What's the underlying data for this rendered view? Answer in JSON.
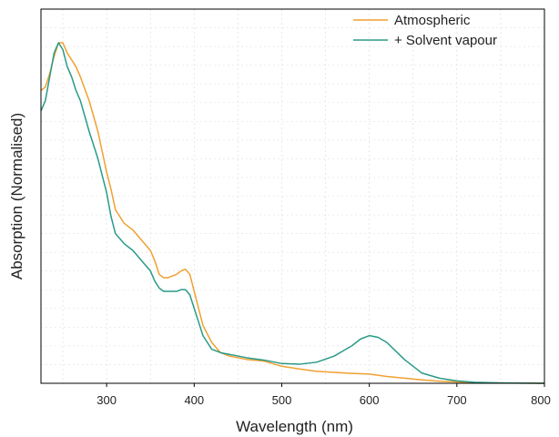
{
  "chart_data": {
    "type": "line",
    "title": "",
    "xlabel": "Wavelength (nm)",
    "ylabel": "Absorption (Normalised)",
    "xlim": [
      225,
      800
    ],
    "ylim": [
      0,
      1.0
    ],
    "x_ticks": [
      300,
      400,
      500,
      600,
      700,
      800
    ],
    "x_tick_labels": [
      "300",
      "400",
      "500",
      "600",
      "700",
      "800"
    ],
    "y_ticks_labeled": false,
    "grid": "minor dashed gridlines",
    "legend": "top-right",
    "series": [
      {
        "name": "Atmospheric",
        "color": "#F0A030",
        "x": [
          225,
          230,
          235,
          240,
          245,
          250,
          255,
          260,
          265,
          270,
          280,
          290,
          300,
          305,
          310,
          320,
          330,
          340,
          350,
          355,
          360,
          365,
          370,
          375,
          380,
          385,
          390,
          395,
          400,
          405,
          410,
          420,
          430,
          440,
          460,
          480,
          500,
          520,
          540,
          560,
          580,
          600,
          620,
          640,
          660,
          680,
          700,
          720,
          750,
          800
        ],
        "y": [
          0.86,
          0.87,
          0.91,
          0.96,
          1.0,
          1.0,
          0.97,
          0.95,
          0.93,
          0.9,
          0.83,
          0.74,
          0.62,
          0.57,
          0.51,
          0.47,
          0.45,
          0.42,
          0.39,
          0.36,
          0.32,
          0.31,
          0.31,
          0.315,
          0.32,
          0.33,
          0.335,
          0.32,
          0.27,
          0.22,
          0.17,
          0.12,
          0.09,
          0.08,
          0.07,
          0.065,
          0.05,
          0.042,
          0.035,
          0.032,
          0.029,
          0.027,
          0.02,
          0.015,
          0.01,
          0.006,
          0.004,
          0.002,
          0.001,
          0.0
        ]
      },
      {
        "name": "+ Solvent vapour",
        "color": "#2A9A88",
        "x": [
          225,
          230,
          235,
          240,
          245,
          250,
          255,
          260,
          265,
          270,
          280,
          290,
          300,
          305,
          310,
          320,
          330,
          340,
          350,
          355,
          360,
          365,
          370,
          375,
          380,
          385,
          390,
          395,
          400,
          405,
          410,
          420,
          430,
          440,
          460,
          480,
          500,
          520,
          540,
          560,
          580,
          590,
          600,
          610,
          620,
          640,
          660,
          680,
          700,
          720,
          750,
          800
        ],
        "y": [
          0.8,
          0.83,
          0.9,
          0.97,
          1.0,
          0.98,
          0.93,
          0.9,
          0.86,
          0.83,
          0.74,
          0.66,
          0.56,
          0.49,
          0.44,
          0.41,
          0.39,
          0.36,
          0.33,
          0.3,
          0.28,
          0.27,
          0.27,
          0.27,
          0.27,
          0.275,
          0.275,
          0.26,
          0.22,
          0.18,
          0.14,
          0.1,
          0.09,
          0.085,
          0.075,
          0.068,
          0.058,
          0.056,
          0.062,
          0.08,
          0.11,
          0.13,
          0.14,
          0.135,
          0.12,
          0.07,
          0.03,
          0.015,
          0.007,
          0.003,
          0.001,
          0.0
        ]
      }
    ]
  }
}
